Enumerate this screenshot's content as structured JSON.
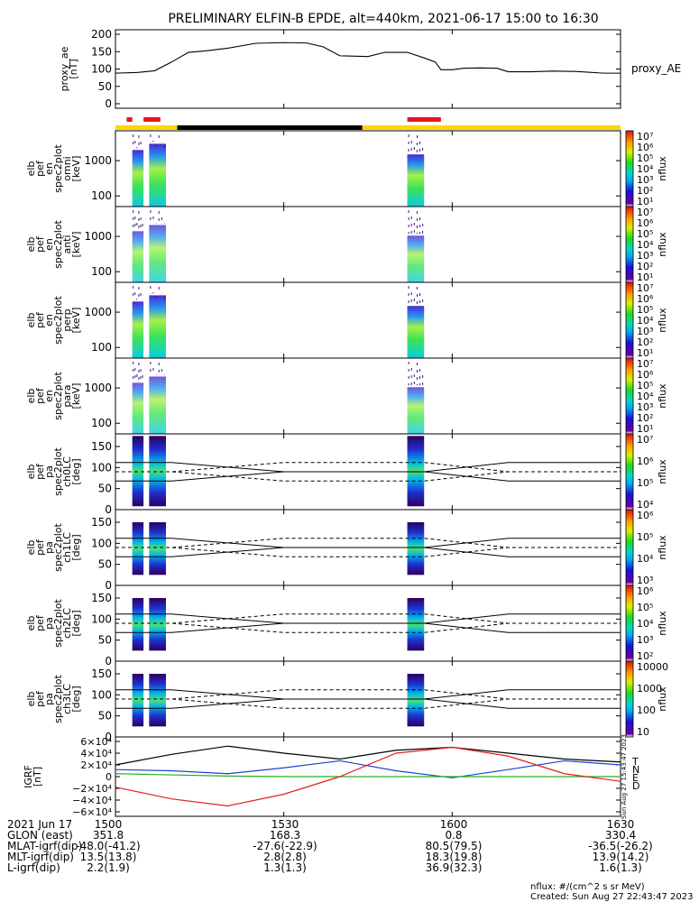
{
  "title": "PRELIMINARY ELFIN-B EPDE, alt=440km, 2021-06-17 15:00 to 16:30",
  "colors": {
    "black": "#000000",
    "red": "#e8141a",
    "yellow": "#ffd700",
    "n_blue": "#1f3fd0",
    "e_green": "#22b022",
    "d_red": "#e02020"
  },
  "ae_panel": {
    "ylabel_lines": [
      "proxy_ae",
      "[nT]"
    ],
    "legend": "proxy_AE",
    "yticks": [
      "200",
      "150",
      "100",
      "50",
      "0"
    ]
  },
  "spec_panels": [
    {
      "ylabel_lines": [
        "elb",
        "pef",
        "en",
        "spec2plot",
        "omni",
        "[keV]"
      ],
      "yticks": [
        "1000",
        "100"
      ],
      "cbar_ticks": [
        "10⁷",
        "10⁶",
        "10⁵",
        "10⁴",
        "10³",
        "10²",
        "10¹"
      ],
      "cbar_label": "nflux"
    },
    {
      "ylabel_lines": [
        "elb",
        "pef",
        "en",
        "spec2plot",
        "anti",
        "[keV]"
      ],
      "yticks": [
        "1000",
        "100"
      ],
      "cbar_ticks": [
        "10⁷",
        "10⁶",
        "10⁵",
        "10⁴",
        "10³",
        "10²",
        "10¹"
      ],
      "cbar_label": "nflux"
    },
    {
      "ylabel_lines": [
        "elb",
        "pef",
        "en",
        "spec2plot",
        "perp",
        "[keV]"
      ],
      "yticks": [
        "1000",
        "100"
      ],
      "cbar_ticks": [
        "10⁷",
        "10⁶",
        "10⁵",
        "10⁴",
        "10³",
        "10²",
        "10¹"
      ],
      "cbar_label": "nflux"
    },
    {
      "ylabel_lines": [
        "elb",
        "pef",
        "en",
        "spec2plot",
        "para",
        "[keV]"
      ],
      "yticks": [
        "1000",
        "100"
      ],
      "cbar_ticks": [
        "10⁷",
        "10⁶",
        "10⁵",
        "10⁴",
        "10³",
        "10²",
        "10¹"
      ],
      "cbar_label": "nflux"
    }
  ],
  "pa_panels": [
    {
      "ylabel_lines": [
        "elb",
        "pef",
        "pa",
        "spec2plot",
        "ch0LC",
        "[deg]"
      ],
      "yticks": [
        "150",
        "100",
        "50",
        "0"
      ],
      "cbar_ticks": [
        "10⁷",
        "10⁶",
        "10⁵",
        "10⁴"
      ],
      "cbar_label": "nflux"
    },
    {
      "ylabel_lines": [
        "elb",
        "pef",
        "pa",
        "spec2plot",
        "ch1LC",
        "[deg]"
      ],
      "yticks": [
        "150",
        "100",
        "50",
        "0"
      ],
      "cbar_ticks": [
        "10⁶",
        "10⁵",
        "10⁴",
        "10³"
      ],
      "cbar_label": "nflux"
    },
    {
      "ylabel_lines": [
        "elb",
        "pef",
        "pa",
        "spec2plot",
        "ch2LC",
        "[deg]"
      ],
      "yticks": [
        "150",
        "100",
        "50",
        "0"
      ],
      "cbar_ticks": [
        "10⁶",
        "10⁵",
        "10⁴",
        "10³",
        "10²"
      ],
      "cbar_label": "nflux"
    },
    {
      "ylabel_lines": [
        "elb",
        "pef",
        "pa",
        "spec2plot",
        "ch3LC",
        "[deg]"
      ],
      "yticks": [
        "150",
        "100",
        "50",
        "0"
      ],
      "cbar_ticks": [
        "10000",
        "1000",
        "100",
        "10"
      ],
      "cbar_label": "nflux"
    }
  ],
  "igrf_panel": {
    "ylabel_lines": [
      "IGRF",
      "[nT]"
    ],
    "yticks": [
      "6×10⁴",
      "4×10⁴",
      "2×10⁴",
      "0",
      "−2×10⁴",
      "−4×10⁴",
      "−6×10⁴"
    ],
    "legend": [
      "T",
      "N",
      "E",
      "D"
    ],
    "stamp": "Sun Aug 27 15:43:47 2023"
  },
  "footer": {
    "rows": [
      {
        "label": "2021 Jun 17",
        "values": [
          "1500",
          "1530",
          "1600",
          "1630"
        ]
      },
      {
        "label": "GLON (east)",
        "values": [
          "351.8",
          "168.3",
          "0.8",
          "330.4"
        ]
      },
      {
        "label": "MLAT-igrf(dip)",
        "values": [
          "-48.0(-41.2)",
          "-27.6(-22.9)",
          "80.5(79.5)",
          "-36.5(-26.2)"
        ]
      },
      {
        "label": "MLT-igrf(dip)",
        "values": [
          "13.5(13.8)",
          "2.8(2.8)",
          "18.3(19.8)",
          "13.9(14.2)"
        ]
      },
      {
        "label": "L-igrf(dip)",
        "values": [
          "2.2(1.9)",
          "1.3(1.3)",
          "36.9(32.3)",
          "1.6(1.3)"
        ]
      }
    ],
    "nflux_units": "nflux: #/(cm^2 s sr MeV)",
    "created": "Created: Sun Aug 27 22:43:47 2023"
  },
  "chart_data": [
    {
      "type": "line",
      "series": [
        {
          "name": "proxy_AE",
          "x": [
            "15:00",
            "15:04",
            "15:07",
            "15:10",
            "15:13",
            "15:16",
            "15:20",
            "15:25",
            "15:30",
            "15:34",
            "15:37",
            "15:40",
            "15:45",
            "15:48",
            "15:52",
            "15:55",
            "15:57",
            "15:58",
            "16:00",
            "16:02",
            "16:05",
            "16:08",
            "16:10",
            "16:14",
            "16:18",
            "16:22",
            "16:27",
            "16:30"
          ],
          "values": [
            88,
            90,
            95,
            120,
            148,
            152,
            160,
            174,
            176,
            175,
            164,
            138,
            136,
            148,
            148,
            132,
            120,
            98,
            98,
            102,
            103,
            102,
            92,
            92,
            94,
            93,
            88,
            88
          ]
        }
      ],
      "ylim": [
        0,
        200
      ],
      "xlim": [
        "15:00",
        "16:30"
      ]
    },
    {
      "type": "bar",
      "series": [
        {
          "x_start": [
            "15:02",
            "15:05",
            "15:52"
          ],
          "x_end": [
            "15:03",
            "15:08",
            "15:58"
          ],
          "color": "red"
        },
        {
          "x_start": [
            "15:11"
          ],
          "x_end": [
            "15:44"
          ],
          "color": "black"
        },
        {
          "x_start": [
            "15:00",
            "15:44"
          ],
          "x_end": [
            "15:11",
            "16:30"
          ],
          "color": "yellow"
        }
      ]
    },
    {
      "type": "heatmap",
      "ylim": [
        50,
        7000
      ],
      "log_scale": true,
      "zlim": [
        "10¹",
        "10⁷"
      ],
      "bursts": [
        {
          "x_start": "15:03",
          "x_end": "15:05",
          "e_max": 2000
        },
        {
          "x_start": "15:06",
          "x_end": "15:09",
          "e_max": 3000
        },
        {
          "x_start": "15:52",
          "x_end": "15:55",
          "e_max": 1500
        }
      ]
    },
    {
      "type": "line",
      "xlim": [
        "15:00",
        "16:30"
      ],
      "ylim": [
        0,
        180
      ],
      "series": [
        {
          "x": [
            "15:00",
            "15:10",
            "15:30",
            "15:55",
            "16:10",
            "16:30"
          ],
          "values": [
            112,
            112,
            90,
            90,
            112,
            112
          ]
        },
        {
          "x": [
            "15:00",
            "15:10",
            "15:30",
            "15:55",
            "16:10",
            "16:30"
          ],
          "values": [
            68,
            68,
            90,
            90,
            68,
            68
          ]
        },
        {
          "x": [
            "15:00",
            "15:10",
            "15:30",
            "15:55",
            "16:10",
            "16:30"
          ],
          "values": [
            90,
            90,
            68,
            68,
            90,
            90
          ]
        },
        {
          "x": [
            "15:00",
            "15:10",
            "15:30",
            "15:55",
            "16:10",
            "16:30"
          ],
          "values": [
            90,
            90,
            112,
            112,
            90,
            90
          ]
        }
      ]
    },
    {
      "type": "line",
      "xlim": [
        "15:00",
        "16:30"
      ],
      "ylim": [
        -60000,
        60000
      ],
      "series": [
        {
          "name": "T",
          "x": [
            "15:00",
            "15:10",
            "15:20",
            "15:30",
            "15:40",
            "15:50",
            "16:00",
            "16:10",
            "16:20",
            "16:30"
          ],
          "values": [
            20000,
            38000,
            52000,
            40000,
            30000,
            45000,
            50000,
            40000,
            30000,
            25000
          ]
        },
        {
          "name": "N",
          "x": [
            "15:00",
            "15:10",
            "15:20",
            "15:30",
            "15:40",
            "15:50",
            "16:00",
            "16:10",
            "16:20",
            "16:30"
          ],
          "values": [
            12000,
            10000,
            5000,
            15000,
            27000,
            10000,
            -2000,
            12000,
            27000,
            20000
          ]
        },
        {
          "name": "E",
          "x": [
            "15:00",
            "15:10",
            "15:20",
            "15:30",
            "15:40",
            "15:50",
            "16:00",
            "16:10",
            "16:20",
            "16:30"
          ],
          "values": [
            5000,
            3000,
            1000,
            0,
            0,
            0,
            0,
            0,
            0,
            0
          ]
        },
        {
          "name": "D",
          "x": [
            "15:00",
            "15:10",
            "15:20",
            "15:30",
            "15:40",
            "15:50",
            "16:00",
            "16:10",
            "16:20",
            "16:30"
          ],
          "values": [
            -18000,
            -38000,
            -50000,
            -30000,
            0,
            40000,
            50000,
            35000,
            5000,
            -8000
          ]
        }
      ]
    }
  ]
}
